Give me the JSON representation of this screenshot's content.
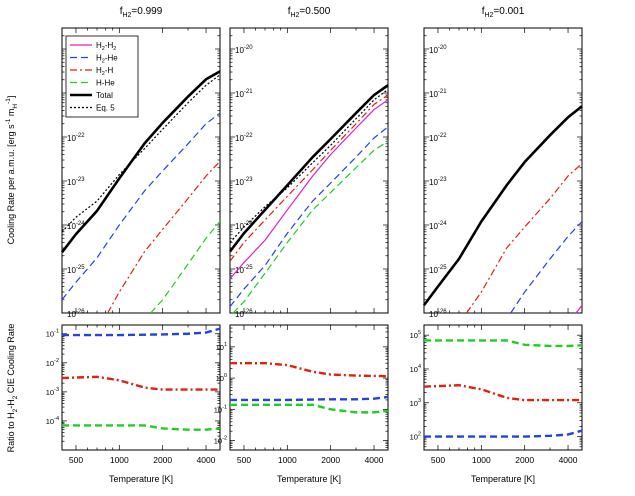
{
  "chart_data": {
    "type": "line",
    "x_label": "Temperature [K]",
    "x_ticks": [
      1000,
      2000,
      4000
    ],
    "x_tick_labels": [
      "500",
      "1000",
      "2000",
      "4000"
    ],
    "x_tick_values": [
      500,
      1000,
      2000,
      4000
    ],
    "xlim": [
      400,
      5000
    ],
    "x_scale": "log",
    "top_ylabel": "Cooling Rate per a.m.u. [erg s-1 mH-1]",
    "top_ylabel_parts": [
      "Cooling Rate per a.m.u. [erg s",
      "-1",
      " m",
      "H",
      "-1",
      "]"
    ],
    "bottom_ylabel": "Ratio to H2-H2 CIE Cooling Rate",
    "bottom_ylabel_parts": [
      "Ratio to H",
      "2",
      "-H",
      "2",
      " CIE Cooling Rate"
    ],
    "top_ylim": [
      1e-26,
      3e-20
    ],
    "top_y_scale": "log",
    "top_tick_exponents": [
      -26,
      -25,
      -24,
      -23,
      -22,
      -21,
      -20
    ],
    "legend": {
      "placement": "top-left",
      "entries": [
        {
          "key": "h2h2",
          "parts": [
            "H",
            "2",
            "-H",
            "2"
          ],
          "color": "#e020c0",
          "dash": "solid",
          "width": 1.2
        },
        {
          "key": "h2he",
          "parts": [
            "H",
            "2",
            "-He",
            ""
          ],
          "color": "#2244dd",
          "dash": "7,4",
          "width": 1.2
        },
        {
          "key": "h2h",
          "parts": [
            "H",
            "2",
            "-H",
            ""
          ],
          "color": "#dd2211",
          "dash": "7,3,2,3",
          "width": 1.2
        },
        {
          "key": "hhe",
          "parts": [
            "H-He",
            "",
            "",
            ""
          ],
          "color": "#22cc22",
          "dash": "7,4",
          "width": 1.2
        },
        {
          "key": "total",
          "parts": [
            "Total",
            "",
            "",
            ""
          ],
          "color": "#000000",
          "dash": "solid",
          "width": 2.6
        },
        {
          "key": "eq5",
          "parts": [
            "Eq. 5",
            "",
            "",
            ""
          ],
          "color": "#000000",
          "dash": "2,2",
          "width": 1.2
        }
      ]
    },
    "panels": [
      {
        "title_main": "f",
        "title_sub": "H2",
        "title_value": "=0.999",
        "top_series": {
          "h2h2": [
            [
              400,
              2.3e-25
            ],
            [
              500,
              6e-25
            ],
            [
              700,
              2e-24
            ],
            [
              1000,
              1.1e-23
            ],
            [
              1500,
              7e-23
            ],
            [
              2000,
              2e-22
            ],
            [
              3000,
              8e-22
            ],
            [
              4000,
              2e-21
            ],
            [
              5000,
              3e-21
            ]
          ],
          "total": [
            [
              400,
              2.4e-25
            ],
            [
              500,
              6.2e-25
            ],
            [
              700,
              2.1e-24
            ],
            [
              1000,
              1.15e-23
            ],
            [
              1500,
              7.2e-23
            ],
            [
              2000,
              2.1e-22
            ],
            [
              3000,
              8.3e-22
            ],
            [
              4000,
              2.05e-21
            ],
            [
              5000,
              3.1e-21
            ]
          ],
          "eq5": [
            [
              400,
              7e-25
            ],
            [
              500,
              1.5e-24
            ],
            [
              700,
              3.5e-24
            ],
            [
              1000,
              1.4e-23
            ],
            [
              1500,
              5.5e-23
            ],
            [
              2000,
              1.5e-22
            ],
            [
              3000,
              6e-22
            ],
            [
              4000,
              1.5e-21
            ],
            [
              5000,
              2.6e-21
            ]
          ],
          "h2he": [
            [
              400,
              2e-26
            ],
            [
              500,
              5e-26
            ],
            [
              700,
              1.8e-25
            ],
            [
              1000,
              1e-24
            ],
            [
              1500,
              6e-24
            ],
            [
              2000,
              1.7e-23
            ],
            [
              3000,
              7e-23
            ],
            [
              4000,
              2e-22
            ],
            [
              5000,
              3.5e-22
            ]
          ],
          "h2h": [
            [
              830,
              1e-26
            ],
            [
              1000,
              3e-26
            ],
            [
              1500,
              2.5e-25
            ],
            [
              2000,
              8e-25
            ],
            [
              3000,
              4e-24
            ],
            [
              4000,
              1.3e-23
            ],
            [
              5000,
              2.8e-23
            ]
          ],
          "hhe": [
            [
              1650,
              1e-26
            ],
            [
              2000,
              2e-26
            ],
            [
              3000,
              1.3e-25
            ],
            [
              4000,
              5e-25
            ],
            [
              5000,
              1.2e-24
            ]
          ]
        },
        "bottom_ylim": [
          1e-05,
          0.2
        ],
        "bottom_tick_exponents": [
          -4,
          -3,
          -2,
          -1
        ],
        "bottom_series": {
          "h2he": [
            [
              400,
              0.09
            ],
            [
              1000,
              0.09
            ],
            [
              2000,
              0.095
            ],
            [
              3000,
              0.1
            ],
            [
              4000,
              0.11
            ],
            [
              5000,
              0.15
            ]
          ],
          "h2h": [
            [
              400,
              0.003
            ],
            [
              700,
              0.0033
            ],
            [
              1000,
              0.0025
            ],
            [
              1500,
              0.0014
            ],
            [
              2000,
              0.0012
            ],
            [
              5000,
              0.0012
            ]
          ],
          "hhe": [
            [
              400,
              7e-05
            ],
            [
              1500,
              7e-05
            ],
            [
              2000,
              5.5e-05
            ],
            [
              3000,
              5e-05
            ],
            [
              4000,
              5e-05
            ],
            [
              5000,
              5.5e-05
            ]
          ]
        }
      },
      {
        "title_main": "f",
        "title_sub": "H2",
        "title_value": "=0.500",
        "top_series": {
          "total": [
            [
              400,
              2.5e-25
            ],
            [
              500,
              6.5e-25
            ],
            [
              700,
              2.2e-24
            ],
            [
              1000,
              8e-24
            ],
            [
              1500,
              3.5e-23
            ],
            [
              2000,
              9e-23
            ],
            [
              3000,
              3.5e-22
            ],
            [
              4000,
              9e-22
            ],
            [
              5000,
              1.5e-21
            ]
          ],
          "eq5": [
            [
              400,
              4e-25
            ],
            [
              500,
              9e-25
            ],
            [
              700,
              2.6e-24
            ],
            [
              1000,
              7e-24
            ],
            [
              1500,
              2.6e-23
            ],
            [
              2000,
              6.5e-23
            ],
            [
              3000,
              2.6e-22
            ],
            [
              4000,
              7e-22
            ],
            [
              5000,
              1.2e-21
            ]
          ],
          "h2h": [
            [
              400,
              1.5e-25
            ],
            [
              500,
              4e-25
            ],
            [
              700,
              1.3e-24
            ],
            [
              1000,
              4.5e-24
            ],
            [
              1500,
              1.8e-23
            ],
            [
              2000,
              5e-23
            ],
            [
              3000,
              2e-22
            ],
            [
              4000,
              5.5e-22
            ],
            [
              5000,
              9e-22
            ]
          ],
          "h2h2": [
            [
              400,
              6e-26
            ],
            [
              500,
              1.4e-25
            ],
            [
              700,
              4.5e-25
            ],
            [
              1000,
              2.2e-24
            ],
            [
              1500,
              1.3e-23
            ],
            [
              2000,
              4e-23
            ],
            [
              3000,
              1.6e-22
            ],
            [
              4000,
              4.2e-22
            ],
            [
              5000,
              7e-22
            ]
          ],
          "h2he": [
            [
              400,
              1.4e-26
            ],
            [
              500,
              3.5e-26
            ],
            [
              700,
              1.2e-25
            ],
            [
              1000,
              6.5e-25
            ],
            [
              1500,
              3.5e-24
            ],
            [
              2000,
              9e-24
            ],
            [
              3000,
              3.5e-23
            ],
            [
              4000,
              9.5e-23
            ],
            [
              5000,
              1.7e-22
            ]
          ],
          "hhe": [
            [
              420,
              1e-26
            ],
            [
              500,
              1.8e-26
            ],
            [
              700,
              8e-26
            ],
            [
              1000,
              4e-25
            ],
            [
              1500,
              2.2e-24
            ],
            [
              2000,
              5.5e-24
            ],
            [
              3000,
              2e-23
            ],
            [
              4000,
              5e-23
            ],
            [
              5000,
              8e-23
            ]
          ]
        },
        "bottom_ylim": [
          0.005,
          50
        ],
        "bottom_tick_exponents": [
          -2,
          -1,
          0,
          1
        ],
        "bottom_series": {
          "h2h": [
            [
              400,
              3
            ],
            [
              700,
              3
            ],
            [
              1000,
              2.6
            ],
            [
              1500,
              1.6
            ],
            [
              2000,
              1.3
            ],
            [
              3000,
              1.2
            ],
            [
              5000,
              1.15
            ]
          ],
          "h2he": [
            [
              400,
              0.2
            ],
            [
              1000,
              0.2
            ],
            [
              2000,
              0.21
            ],
            [
              3000,
              0.21
            ],
            [
              4000,
              0.22
            ],
            [
              5000,
              0.25
            ]
          ],
          "hhe": [
            [
              400,
              0.14
            ],
            [
              1500,
              0.14
            ],
            [
              2000,
              0.1
            ],
            [
              3000,
              0.08
            ],
            [
              4000,
              0.08
            ],
            [
              5000,
              0.09
            ]
          ]
        }
      },
      {
        "title_main": "f",
        "title_sub": "H2",
        "title_value": "=0.001",
        "top_series": {
          "total": [
            [
              400,
              1.5e-26
            ],
            [
              500,
              4e-26
            ],
            [
              700,
              1.7e-25
            ],
            [
              1000,
              1.2e-24
            ],
            [
              1500,
              8e-24
            ],
            [
              2000,
              2.7e-23
            ],
            [
              3000,
              1.1e-22
            ],
            [
              4000,
              2.8e-22
            ],
            [
              5000,
              5e-22
            ]
          ],
          "h2h": [
            [
              790,
              1e-26
            ],
            [
              1000,
              3e-26
            ],
            [
              1500,
              3e-25
            ],
            [
              2000,
              9e-25
            ],
            [
              3000,
              4e-24
            ],
            [
              4000,
              1.3e-23
            ],
            [
              5000,
              2.5e-23
            ]
          ],
          "h2he": [
            [
              1600,
              1e-26
            ],
            [
              2000,
              3e-26
            ],
            [
              3000,
              1.7e-25
            ],
            [
              4000,
              5.5e-25
            ],
            [
              5000,
              1.2e-24
            ]
          ],
          "h2h2": [
            [
              4550,
              1e-26
            ],
            [
              5000,
              1.5e-26
            ]
          ]
        },
        "bottom_ylim": [
          40,
          200000
        ],
        "bottom_tick_exponents": [
          2,
          3,
          4,
          5
        ],
        "bottom_series": {
          "hhe": [
            [
              400,
              70000
            ],
            [
              1500,
              70000
            ],
            [
              2000,
              52000
            ],
            [
              3000,
              48000
            ],
            [
              4000,
              48000
            ],
            [
              5000,
              50000
            ]
          ],
          "h2h": [
            [
              400,
              3000
            ],
            [
              700,
              3300
            ],
            [
              1000,
              2500
            ],
            [
              1500,
              1400
            ],
            [
              2000,
              1200
            ],
            [
              5000,
              1200
            ]
          ],
          "h2he": [
            [
              400,
              100
            ],
            [
              1000,
              100
            ],
            [
              2000,
              100
            ],
            [
              3000,
              105
            ],
            [
              4000,
              115
            ],
            [
              5000,
              150
            ]
          ]
        }
      }
    ]
  }
}
